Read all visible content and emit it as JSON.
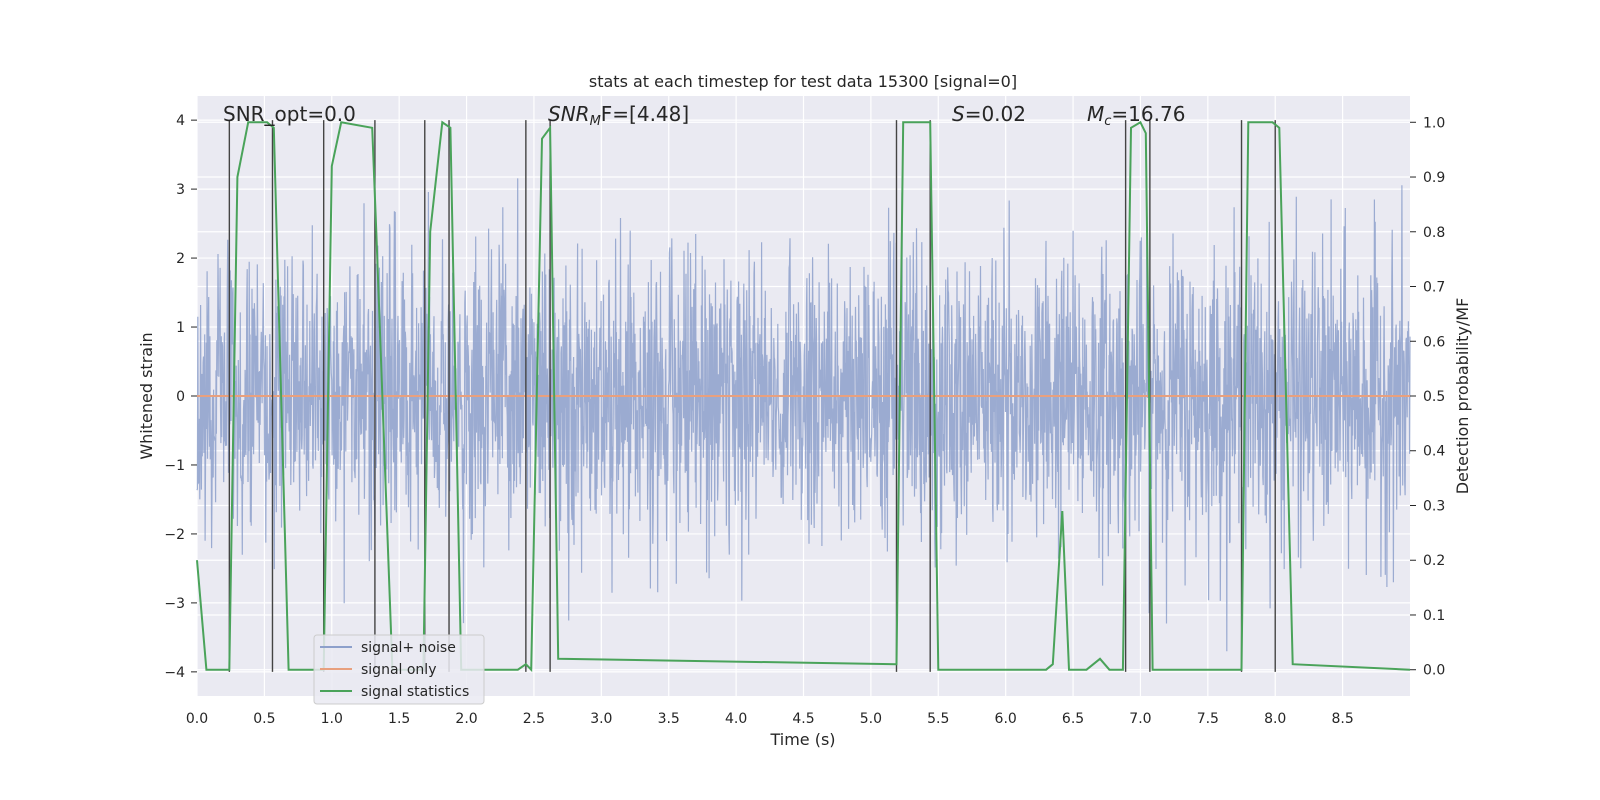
{
  "chart_data": {
    "type": "line",
    "title": "stats at each timestep for test data 15300 [signal=0]",
    "xlabel": "Time (s)",
    "ylabel": "Whitened strain",
    "y2label": "Detection probability/MF",
    "xlim": [
      0,
      9.0
    ],
    "ylim": [
      -4.35,
      4.35
    ],
    "y2lim": [
      -0.048,
      1.048
    ],
    "xticks": [
      0.0,
      0.5,
      1.0,
      1.5,
      2.0,
      2.5,
      3.0,
      3.5,
      4.0,
      4.5,
      5.0,
      5.5,
      6.0,
      6.5,
      7.0,
      7.5,
      8.0,
      8.5
    ],
    "xtick_labels": [
      "0.0",
      "0.5",
      "1.0",
      "1.5",
      "2.0",
      "2.5",
      "3.0",
      "3.5",
      "4.0",
      "4.5",
      "5.0",
      "5.5",
      "6.0",
      "6.5",
      "7.0",
      "7.5",
      "8.0",
      "8.5"
    ],
    "yticks": [
      4,
      3,
      2,
      1,
      0,
      -1,
      -2,
      -3,
      -4
    ],
    "ytick_labels": [
      "4",
      "3",
      "2",
      "1",
      "0",
      "−1",
      "−2",
      "−3",
      "−4"
    ],
    "y2ticks": [
      1.0,
      0.9,
      0.8,
      0.7,
      0.6,
      0.5,
      0.4,
      0.3,
      0.2,
      0.1,
      0.0
    ],
    "y2tick_labels": [
      "1.0",
      "0.9",
      "0.8",
      "0.7",
      "0.6",
      "0.5",
      "0.4",
      "0.3",
      "0.2",
      "0.1",
      "0.0"
    ],
    "annotations": {
      "snr_opt": "SNR_opt=0.0",
      "snr_mf_sym": "SNR",
      "snr_mf_sub": "M",
      "snr_mf_rest": "F=[4.48]",
      "s_sym": "S",
      "s_rest": "=0.02",
      "mc_sym": "M",
      "mc_sub": "c",
      "mc_rest": "=16.76"
    },
    "legend": {
      "location": "lower-left",
      "entries": [
        "signal+ noise",
        "signal only",
        "signal statistics"
      ]
    },
    "colors": {
      "noise": "#8da0cb",
      "signal": "#e8a07e",
      "stats": "#4aa35a",
      "markers": "#444444",
      "background": "#eaeaf2",
      "grid": "#ffffff"
    },
    "noise_series": {
      "name": "signal+ noise",
      "description_range": [
        -3.7,
        3.3
      ]
    },
    "signal_series": {
      "name": "signal only",
      "constant": 0.0
    },
    "stats_series": {
      "name": "signal statistics",
      "x": [
        0.0,
        0.07,
        0.24,
        0.3,
        0.38,
        0.52,
        0.57,
        0.68,
        0.94,
        1.0,
        1.07,
        1.3,
        1.33,
        1.45,
        1.68,
        1.73,
        1.82,
        1.88,
        1.96,
        2.38,
        2.44,
        2.48,
        2.56,
        2.62,
        2.68,
        5.19,
        5.24,
        5.44,
        5.5,
        6.3,
        6.35,
        6.42,
        6.47,
        6.6,
        6.7,
        6.77,
        6.87,
        6.93,
        7.0,
        7.04,
        7.09,
        7.18,
        7.75,
        7.8,
        7.98,
        8.03,
        8.13,
        9.0
      ],
      "y": [
        0.2,
        0.0,
        0.0,
        0.9,
        1.0,
        1.0,
        0.99,
        0.0,
        0.0,
        0.92,
        1.0,
        0.99,
        0.8,
        0.0,
        0.0,
        0.8,
        1.0,
        0.99,
        0.0,
        0.0,
        0.01,
        0.0,
        0.97,
        0.99,
        0.02,
        0.01,
        1.0,
        1.0,
        0.0,
        0.0,
        0.01,
        0.29,
        0.0,
        0.0,
        0.02,
        0.0,
        0.0,
        0.99,
        1.0,
        0.98,
        0.0,
        0.0,
        0.0,
        1.0,
        1.0,
        0.99,
        0.01,
        0.0
      ]
    },
    "marker_lines_x": [
      0.24,
      0.56,
      0.94,
      1.32,
      1.69,
      1.87,
      2.44,
      2.62,
      5.19,
      5.44,
      6.89,
      7.07,
      7.75,
      8.0
    ]
  }
}
